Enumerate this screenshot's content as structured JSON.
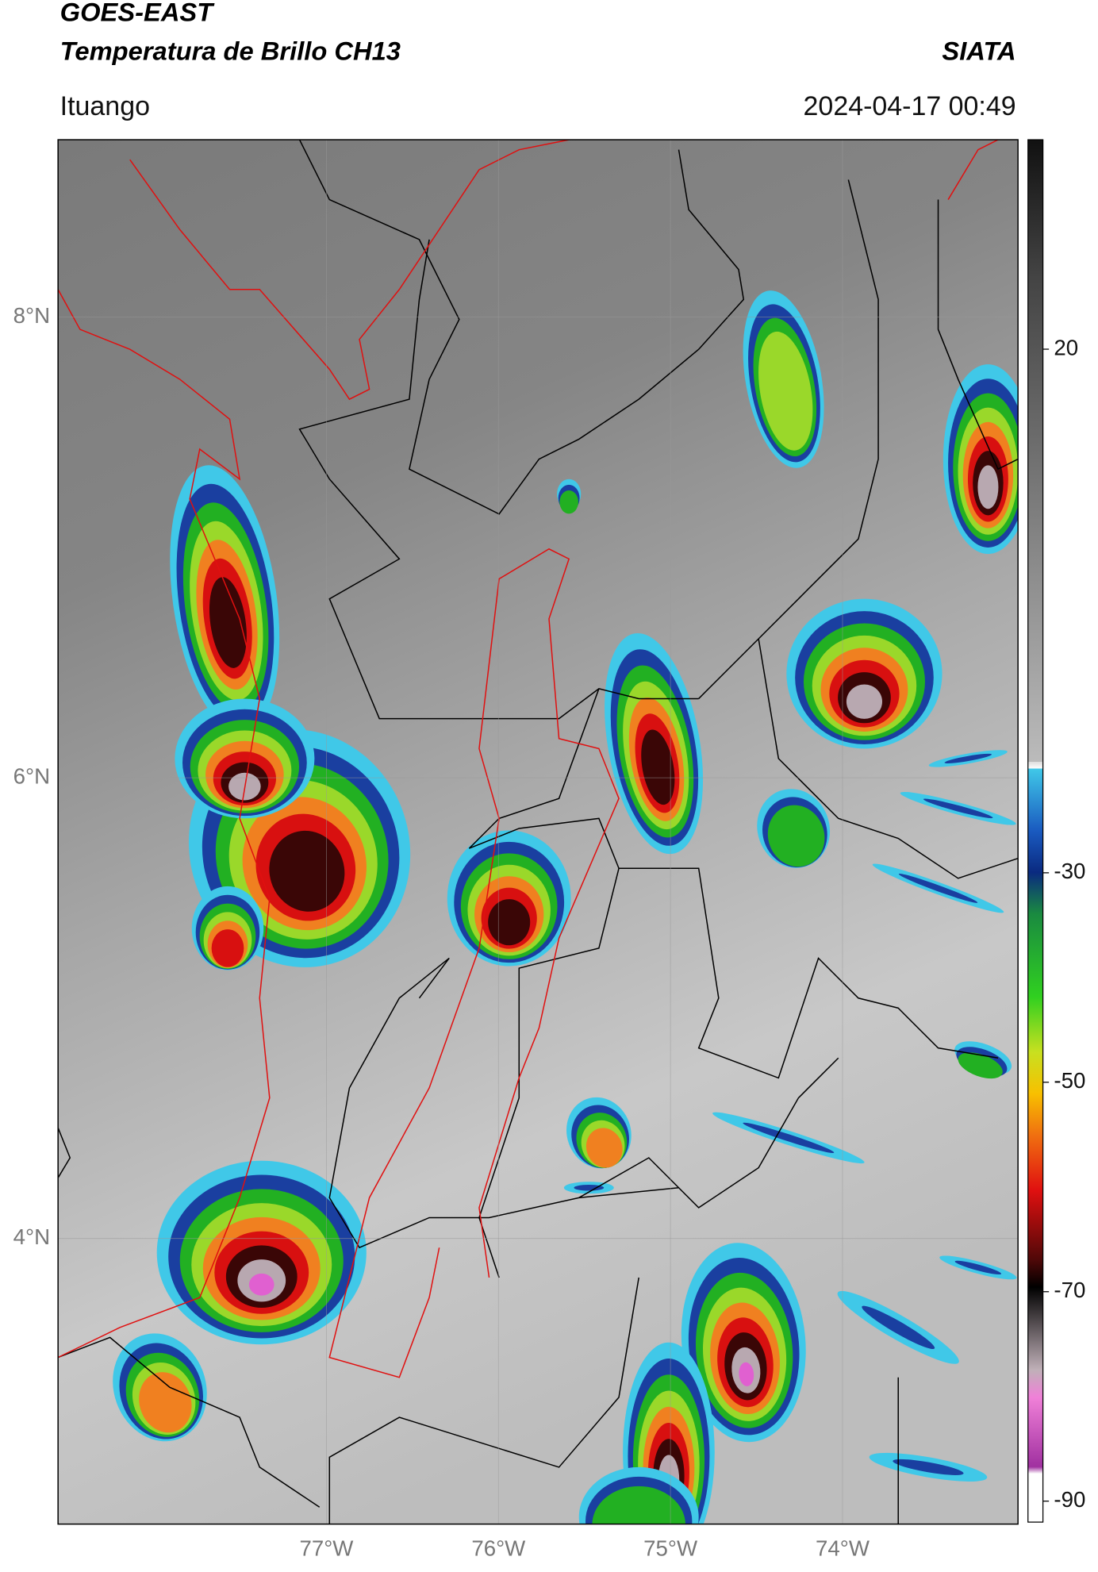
{
  "header": {
    "title_line1": "GOES-EAST",
    "title_line2": "Temperatura de Brillo CH13",
    "source": "SIATA",
    "region": "Ituango",
    "datetime": "2024-04-17 00:49"
  },
  "map": {
    "type": "map",
    "xlim": [
      -78.56,
      -72.98
    ],
    "ylim": [
      2.76,
      8.77
    ],
    "xticks": [
      {
        "value": -77,
        "label": "77°W"
      },
      {
        "value": -76,
        "label": "76°W"
      },
      {
        "value": -75,
        "label": "75°W"
      },
      {
        "value": -74,
        "label": "74°W"
      }
    ],
    "yticks": [
      {
        "value": 8,
        "label": "8°N"
      },
      {
        "value": 6,
        "label": "6°N"
      },
      {
        "value": 4,
        "label": "4°N"
      }
    ],
    "grid": true
  },
  "colorbar": {
    "clim": [
      -92,
      40
    ],
    "ticks": [
      20,
      -30,
      -50,
      -70,
      -90
    ]
  }
}
